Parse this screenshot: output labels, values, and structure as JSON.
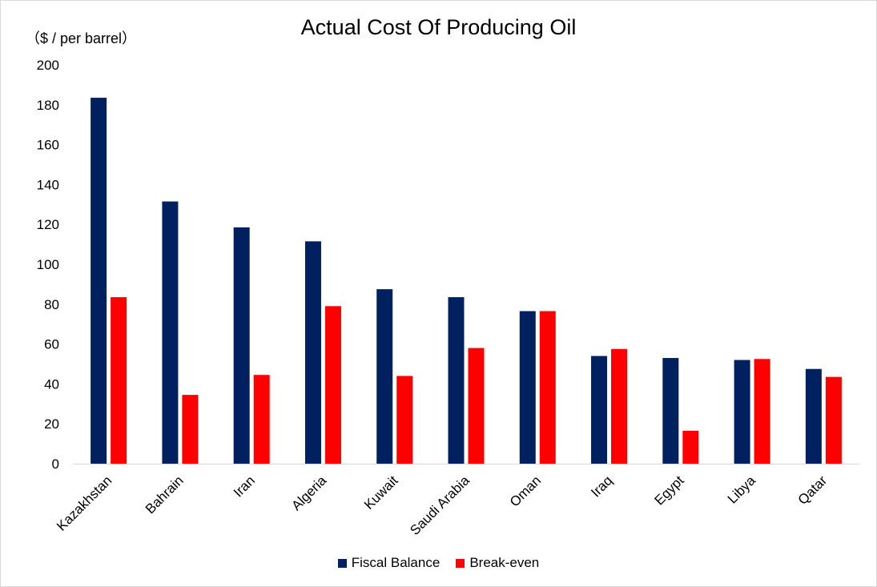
{
  "chart_data": {
    "type": "bar",
    "title": "Actual Cost Of Producing Oil",
    "ylabel": "（$ / per barrel）",
    "xlabel": "",
    "ylim": [
      0,
      200
    ],
    "yticks": [
      0,
      20,
      40,
      60,
      80,
      100,
      120,
      140,
      160,
      180,
      200
    ],
    "categories": [
      "Kazakhstan",
      "Bahrain",
      "Iran",
      "Algeria",
      "Kuwait",
      "Saudi Arabia",
      "Oman",
      "Iraq",
      "Egypt",
      "Libya",
      "Qatar"
    ],
    "series": [
      {
        "name": "Fiscal Balance",
        "color": "#002060",
        "values": [
          183.5,
          131.5,
          118.5,
          111.5,
          87.5,
          83.5,
          76.5,
          54,
          53,
          52,
          47.5
        ]
      },
      {
        "name": "Break-even",
        "color": "#ff0000",
        "values": [
          83.5,
          34.5,
          44.5,
          79,
          44,
          58,
          76.5,
          57.5,
          16.5,
          52.5,
          43.5
        ]
      }
    ],
    "grid": false,
    "legend_position": "bottom"
  }
}
